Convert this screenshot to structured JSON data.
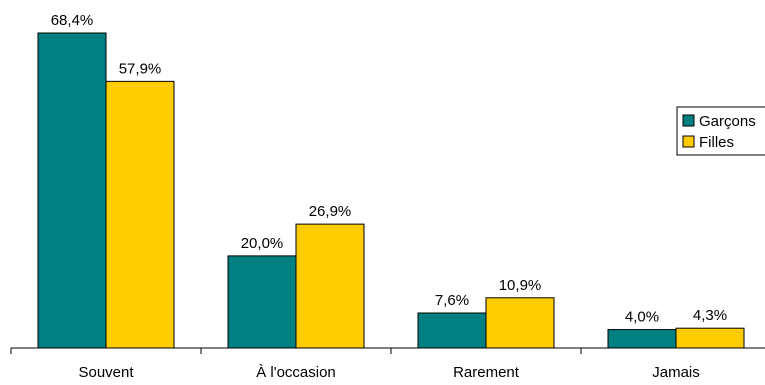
{
  "chart_data": {
    "type": "bar",
    "categories": [
      "Souvent",
      "À l'occasion",
      "Rarement",
      "Jamais"
    ],
    "series": [
      {
        "name": "Garçons",
        "values": [
          68.4,
          20.0,
          7.6,
          4.0
        ],
        "labels": [
          "68,4%",
          "20,0%",
          "7,6%",
          "4,0%"
        ],
        "color": "#008080"
      },
      {
        "name": "Filles",
        "values": [
          57.9,
          26.9,
          10.9,
          4.3
        ],
        "labels": [
          "57,9%",
          "26,9%",
          "10,9%",
          "4,3%"
        ],
        "color": "#FFCC00"
      }
    ],
    "ylim": [
      0,
      68.4
    ],
    "grid": false,
    "legend_position": "right"
  }
}
